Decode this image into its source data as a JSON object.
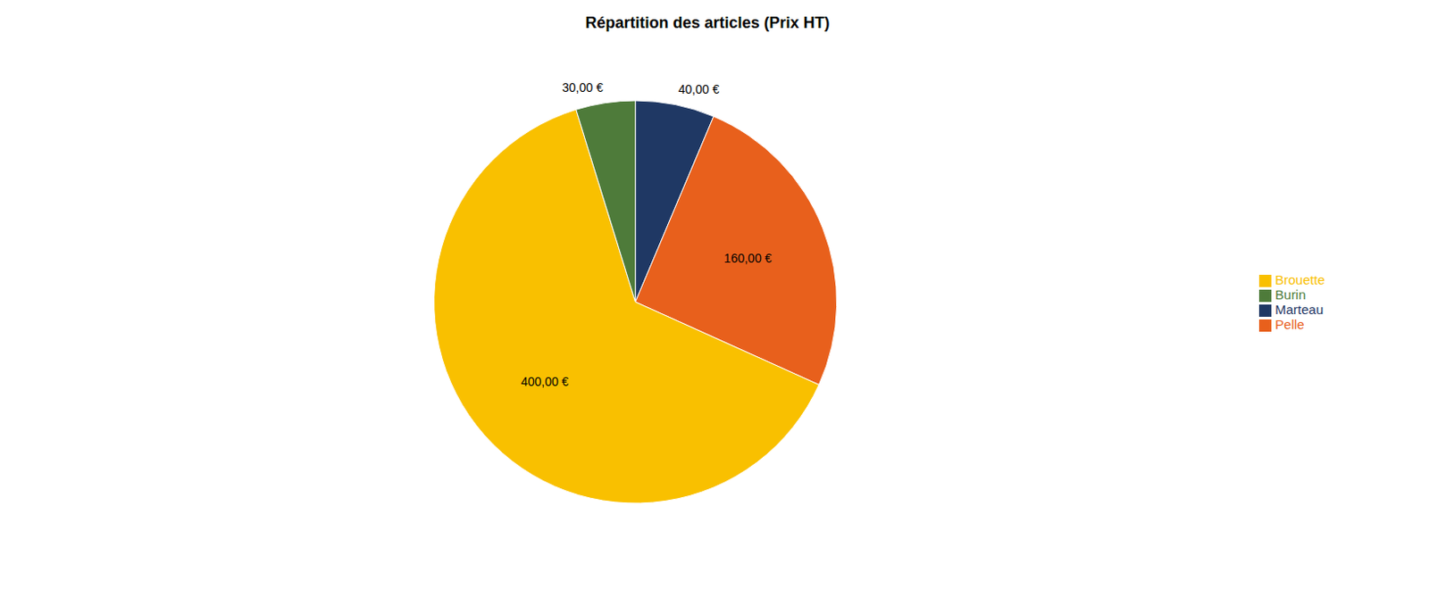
{
  "chart_data": {
    "type": "pie",
    "title": "Répartition des articles (Prix HT)",
    "categories": [
      "Marteau",
      "Pelle",
      "Brouette",
      "Burin"
    ],
    "values": [
      40,
      160,
      400,
      30
    ],
    "value_labels": [
      "40,00 €",
      "160,00 €",
      "400,00 €",
      "30,00 €"
    ],
    "colors": [
      "#1F3864",
      "#E8601C",
      "#F9C000",
      "#4E7B3A"
    ],
    "data_labels": true,
    "legend": "right"
  }
}
